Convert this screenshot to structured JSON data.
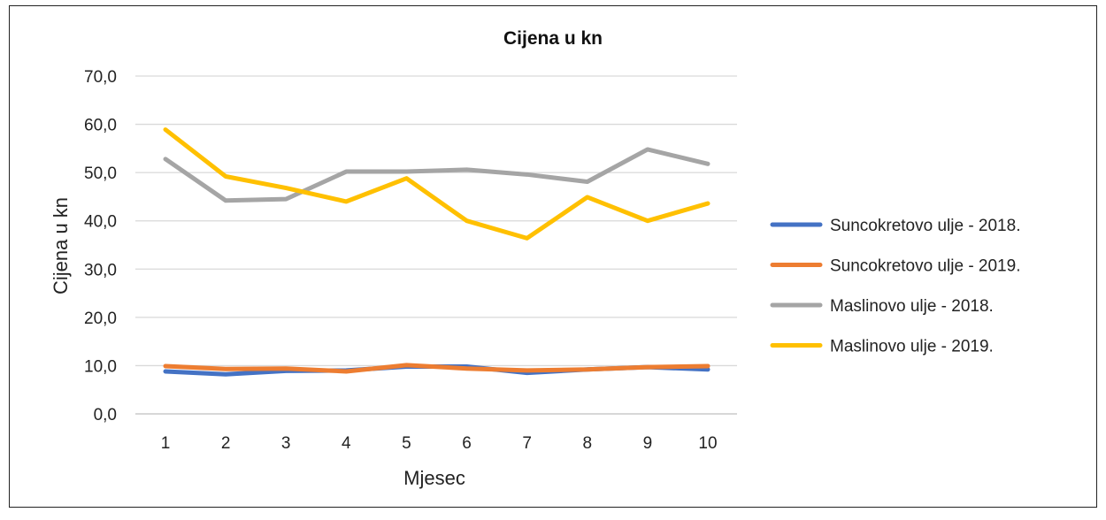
{
  "chart_data": {
    "type": "line",
    "title": "Cijena u kn",
    "xlabel": "Mjesec",
    "ylabel": "Cijena u kn",
    "categories": [
      "1",
      "2",
      "3",
      "4",
      "5",
      "6",
      "7",
      "8",
      "9",
      "10"
    ],
    "ylim": [
      0,
      70
    ],
    "yticks": [
      "0,0",
      "10,0",
      "20,0",
      "30,0",
      "40,0",
      "50,0",
      "60,0",
      "70,0"
    ],
    "grid": true,
    "legend_position": "right",
    "series": [
      {
        "name": "Suncokretovo ulje - 2018.",
        "color": "#4472c4",
        "values": [
          8.8,
          8.2,
          8.9,
          9.0,
          9.8,
          9.8,
          8.5,
          9.2,
          9.7,
          9.2
        ]
      },
      {
        "name": "Suncokretovo ulje - 2019.",
        "color": "#ed7d31",
        "values": [
          9.9,
          9.3,
          9.4,
          8.8,
          10.1,
          9.4,
          9.0,
          9.2,
          9.7,
          9.9
        ]
      },
      {
        "name": "Maslinovo ulje - 2018.",
        "color": "#a5a5a5",
        "values": [
          52.8,
          44.2,
          44.5,
          50.2,
          50.2,
          50.6,
          49.6,
          48.1,
          54.8,
          51.8
        ]
      },
      {
        "name": "Maslinovo ulje - 2019.",
        "color": "#ffc000",
        "values": [
          58.9,
          49.2,
          46.8,
          44.0,
          48.8,
          40.0,
          36.4,
          44.9,
          40.0,
          43.6
        ]
      }
    ]
  }
}
